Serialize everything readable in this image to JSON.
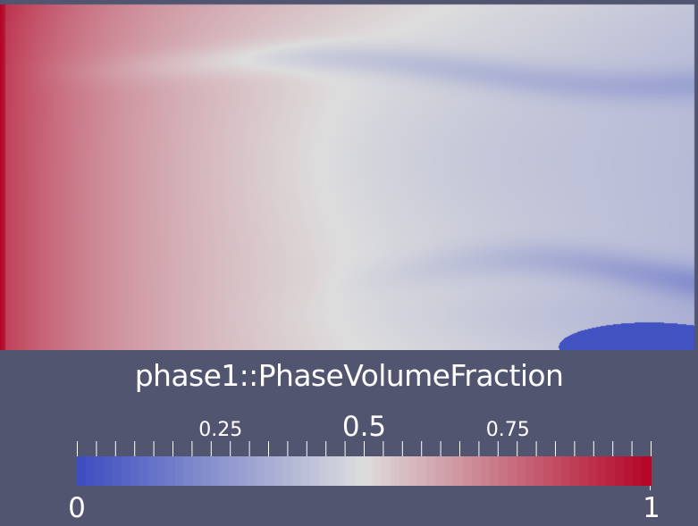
{
  "render_view": {
    "scalar_field": "phase1::PhaseVolumeFraction",
    "colormap": [
      "#3b4cc0",
      "#dddddd",
      "#b40426"
    ],
    "background": "#525570",
    "field_description": {
      "left_inlet_value": 1.0,
      "bulk_value_range": [
        0.35,
        0.6
      ],
      "outlet_low_region_value": 0.0
    }
  },
  "colorbar": {
    "title": "phase1::PhaseVolumeFraction",
    "min_label": "0",
    "max_label": "1",
    "range": [
      0,
      1
    ],
    "major_ticks": [
      {
        "value": 0.25,
        "label": "0.25"
      },
      {
        "value": 0.5,
        "label": "0.5"
      },
      {
        "value": 0.75,
        "label": "0.75"
      }
    ],
    "minor_tick_count": 31
  }
}
